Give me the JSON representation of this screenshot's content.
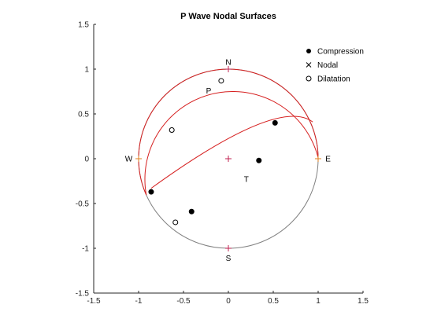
{
  "chart_data": {
    "type": "scatter",
    "title": "P Wave Nodal Surfaces",
    "xlim": [
      -1.5,
      1.5
    ],
    "ylim": [
      -1.5,
      1.5
    ],
    "xticks": [
      "-1.5",
      "-1",
      "-0.5",
      "0",
      "0.5",
      "1",
      "1.5"
    ],
    "yticks": [
      "1.5",
      "1",
      "0.5",
      "0",
      "-0.5",
      "-1",
      "-1.5"
    ],
    "xtick_values": [
      -1.5,
      -1,
      -0.5,
      0,
      0.5,
      1,
      1.5
    ],
    "ytick_values": [
      1.5,
      1,
      0.5,
      0,
      -0.5,
      -1,
      -1.5
    ],
    "grid": false,
    "legend": {
      "placement": "top-right",
      "entries": [
        {
          "label": "Compression",
          "marker": "filled-circle"
        },
        {
          "label": "Nodal",
          "marker": "x"
        },
        {
          "label": "Dilatation",
          "marker": "open-circle"
        }
      ]
    },
    "series": [
      {
        "name": "Compression",
        "points": [
          [
            0.52,
            0.4
          ],
          [
            0.34,
            -0.02
          ],
          [
            -0.86,
            -0.37
          ],
          [
            -0.41,
            -0.59
          ]
        ]
      },
      {
        "name": "Nodal",
        "points": []
      },
      {
        "name": "Dilatation",
        "points": [
          [
            -0.08,
            0.87
          ],
          [
            -0.63,
            0.32
          ],
          [
            -0.59,
            -0.71
          ]
        ]
      }
    ],
    "annotations": [
      {
        "text": "N",
        "x": 0,
        "y": 1.08
      },
      {
        "text": "S",
        "x": 0,
        "y": -1.11
      },
      {
        "text": "W",
        "x": -1.11,
        "y": 0
      },
      {
        "text": "E",
        "x": 1.11,
        "y": 0
      },
      {
        "text": "P",
        "x": -0.22,
        "y": 0.76
      },
      {
        "text": "T",
        "x": 0.2,
        "y": -0.23
      }
    ],
    "axis_markers": [
      [
        0,
        1
      ],
      [
        0,
        -1
      ],
      [
        -1,
        0
      ],
      [
        1,
        0
      ],
      [
        0,
        0
      ]
    ],
    "boundary_circle": {
      "center": [
        0,
        0
      ],
      "radius": 1
    },
    "nodal_plane_1": {
      "center": [
        0.05,
        -0.23
      ],
      "radius": 0.98
    },
    "nodal_plane_2": {
      "start": [
        -0.86,
        -0.33
      ],
      "through": [
        0.3,
        0.37
      ],
      "end": [
        0.94,
        0.41
      ]
    },
    "colors": {
      "nodal_plane": "#d62020",
      "boundary_plain": "#808080",
      "axis_marker": "#c02050",
      "orient_marker": "#e08020",
      "markers": "#000000"
    }
  }
}
